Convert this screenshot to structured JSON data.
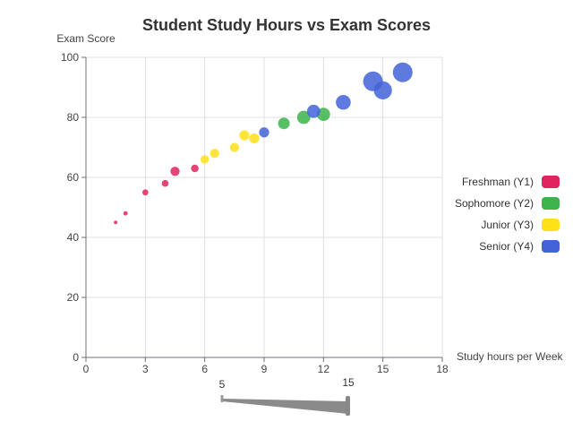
{
  "chart_data": {
    "type": "scatter",
    "title": "Student Study Hours vs Exam Scores",
    "xlabel": "Study hours per Week",
    "ylabel": "Exam Score",
    "xlim": [
      0,
      18
    ],
    "ylim": [
      0,
      100
    ],
    "x_ticks": [
      0,
      3,
      6,
      9,
      12,
      15,
      18
    ],
    "y_ticks": [
      0,
      20,
      40,
      60,
      80,
      100
    ],
    "grid": true,
    "legend_position": "right",
    "series": [
      {
        "name": "Freshman (Y1)",
        "color": "#e0245e",
        "points": [
          {
            "x": 1.5,
            "y": 45,
            "size": 5
          },
          {
            "x": 2,
            "y": 48,
            "size": 5.5
          },
          {
            "x": 3,
            "y": 55,
            "size": 6.5
          },
          {
            "x": 4,
            "y": 58,
            "size": 7
          },
          {
            "x": 4.5,
            "y": 62,
            "size": 8.5
          },
          {
            "x": 5.5,
            "y": 63,
            "size": 7.5
          }
        ]
      },
      {
        "name": "Sophomore (Y2)",
        "color": "#3cb44b",
        "points": [
          {
            "x": 10,
            "y": 78,
            "size": 10
          },
          {
            "x": 11,
            "y": 80,
            "size": 11
          },
          {
            "x": 12,
            "y": 81,
            "size": 11
          }
        ]
      },
      {
        "name": "Junior (Y3)",
        "color": "#ffe119",
        "points": [
          {
            "x": 6,
            "y": 66,
            "size": 8
          },
          {
            "x": 6.5,
            "y": 68,
            "size": 8.5
          },
          {
            "x": 7.5,
            "y": 70,
            "size": 8.5
          },
          {
            "x": 8,
            "y": 74,
            "size": 9
          },
          {
            "x": 8.5,
            "y": 73,
            "size": 9
          }
        ]
      },
      {
        "name": "Senior (Y4)",
        "color": "#4363d8",
        "points": [
          {
            "x": 9,
            "y": 75,
            "size": 9
          },
          {
            "x": 11.5,
            "y": 82,
            "size": 11
          },
          {
            "x": 13,
            "y": 85,
            "size": 12
          },
          {
            "x": 14.5,
            "y": 92,
            "size": 15
          },
          {
            "x": 15,
            "y": 89,
            "size": 14
          },
          {
            "x": 16,
            "y": 95,
            "size": 15
          }
        ]
      }
    ],
    "size_scale": {
      "min_label": "5",
      "max_label": "15"
    }
  }
}
